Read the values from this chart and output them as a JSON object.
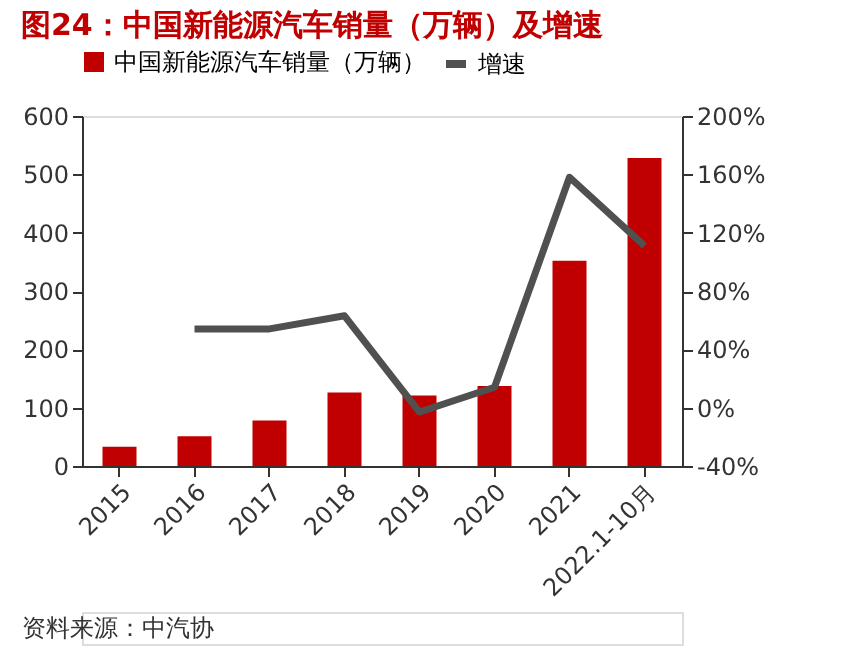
{
  "chart_data": {
    "type": "bar",
    "title": "图24：中国新能源汽车销量（万辆）及增速",
    "categories": [
      "2015",
      "2016",
      "2017",
      "2018",
      "2019",
      "2020",
      "2021",
      "2022.1-10月"
    ],
    "series": [
      {
        "name": "中国新能源汽车销量（万辆）",
        "color": "#c00000",
        "values": [
          33,
          51,
          78,
          126,
          121,
          137,
          352,
          528
        ]
      },
      {
        "name": "增速",
        "type": "line",
        "axis": "y2",
        "color": "#505050",
        "values": [
          null,
          54,
          54,
          63,
          -3,
          14,
          158,
          111
        ]
      }
    ],
    "ylim": [
      0,
      600
    ],
    "yticks": [
      0,
      100,
      200,
      300,
      400,
      500,
      600
    ],
    "y2lim": [
      -40,
      200
    ],
    "y2ticks": [
      {
        "value": -40,
        "label": "-40%"
      },
      {
        "value": 0,
        "label": "0%"
      },
      {
        "value": 40,
        "label": "40%"
      },
      {
        "value": 80,
        "label": "80%"
      },
      {
        "value": 120,
        "label": "120%"
      },
      {
        "value": 160,
        "label": "160%"
      },
      {
        "value": 200,
        "label": "200%"
      }
    ],
    "grid": false,
    "legend": "top",
    "marker": "none",
    "line_style": "solid",
    "annotations": [
      "资料来源：中汽协"
    ]
  }
}
